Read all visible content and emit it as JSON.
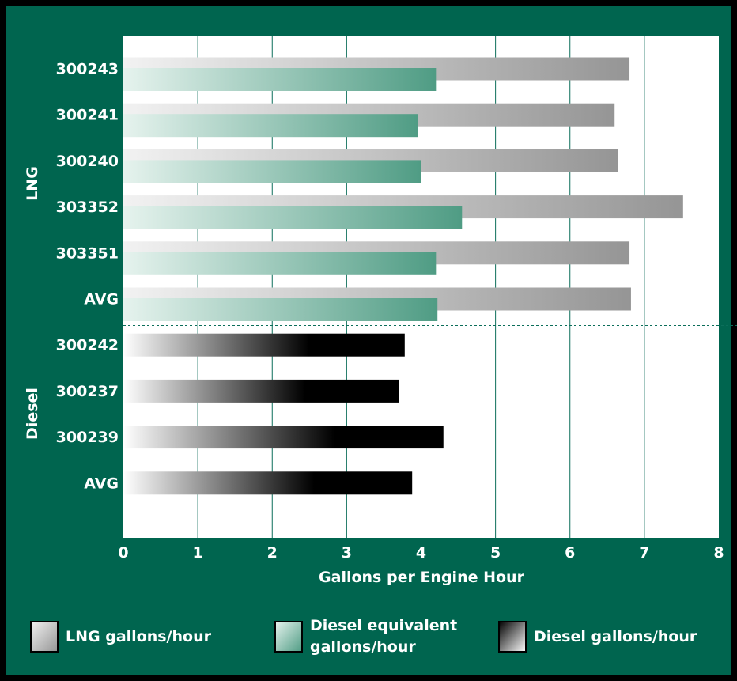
{
  "chart_data": {
    "type": "bar",
    "xlabel": "Gallons per Engine Hour",
    "xlim": [
      0,
      8
    ],
    "xticks": [
      0,
      1,
      2,
      3,
      4,
      5,
      6,
      7,
      8
    ],
    "grid": true,
    "groups": [
      {
        "name": "LNG",
        "categories": [
          "300243",
          "300241",
          "300240",
          "303352",
          "303351",
          "AVG"
        ]
      },
      {
        "name": "Diesel",
        "categories": [
          "300242",
          "300237",
          "300239",
          "AVG"
        ]
      }
    ],
    "series": [
      {
        "name": "LNG gallons/hour",
        "group": "LNG",
        "values": [
          6.8,
          6.6,
          6.65,
          7.52,
          6.8,
          6.82
        ]
      },
      {
        "name": "Diesel equivalent gallons/hour",
        "group": "LNG",
        "values": [
          4.2,
          3.96,
          4.0,
          4.55,
          4.2,
          4.22
        ]
      },
      {
        "name": "Diesel gallons/hour",
        "group": "Diesel",
        "values": [
          3.78,
          3.7,
          4.3,
          3.88
        ]
      }
    ]
  },
  "legend": {
    "items": [
      {
        "label_lines": [
          "LNG gallons/hour"
        ],
        "swatch": "lng"
      },
      {
        "label_lines": [
          "Diesel equivalent",
          "gallons/hour"
        ],
        "swatch": "deq"
      },
      {
        "label_lines": [
          "Diesel gallons/hour"
        ],
        "swatch": "diesel"
      }
    ]
  },
  "colors": {
    "frame": "#000000",
    "background": "#00654f",
    "plot_bg": "#ffffff",
    "grid": "#0b6e5a",
    "text": "#ffffff",
    "lng_light": "#f2f2f2",
    "lng_dark": "#959595",
    "deq_light": "#e6f3ee",
    "deq_dark": "#4f9c84",
    "diesel_light": "#ffffff",
    "diesel_dark": "#000000"
  }
}
